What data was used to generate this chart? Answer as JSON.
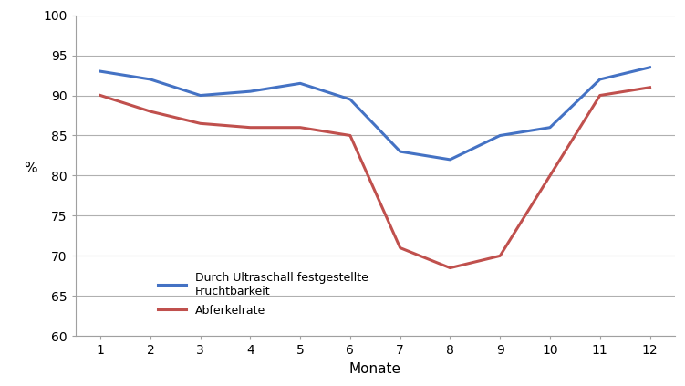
{
  "months": [
    1,
    2,
    3,
    4,
    5,
    6,
    7,
    8,
    9,
    10,
    11,
    12
  ],
  "fruchtbarkeit": [
    93,
    92,
    90,
    90.5,
    91.5,
    89.5,
    83,
    82,
    85,
    86,
    92,
    93.5
  ],
  "abferkelrate": [
    90,
    88,
    86.5,
    86,
    86,
    85,
    71,
    68.5,
    70,
    90,
    91
  ],
  "abferkelrate_months": [
    1,
    2,
    3,
    4,
    5,
    6,
    7,
    8,
    9,
    11,
    12
  ],
  "fruchtbarkeit_color": "#4472C4",
  "abferkelrate_color": "#C0504D",
  "ylim": [
    60,
    100
  ],
  "yticks": [
    60,
    65,
    70,
    75,
    80,
    85,
    90,
    95,
    100
  ],
  "xticks": [
    1,
    2,
    3,
    4,
    5,
    6,
    7,
    8,
    9,
    10,
    11,
    12
  ],
  "xlabel": "Monate",
  "ylabel": "%",
  "legend_fruchtbarkeit": "Durch Ultraschall festgestellte\nFruchtbarkeit",
  "legend_abferkelrate": "Abferkelrate",
  "line_width": 2.2,
  "background_color": "#ffffff",
  "grid_color": "#b0b0b0"
}
